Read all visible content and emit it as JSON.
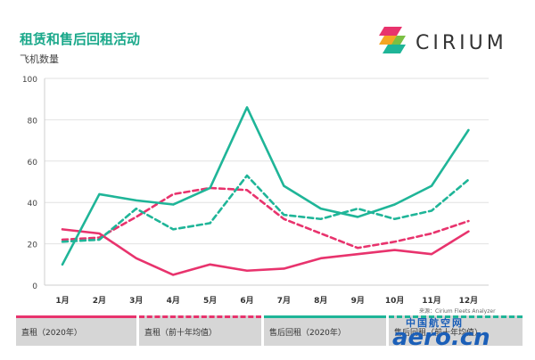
{
  "header": {
    "title": "租赁和售后回租活动",
    "ylabel": "飞机数量"
  },
  "logo": {
    "text": "CIRIUM"
  },
  "source": "来源：Cirium Fleets Analyzer",
  "legend": {
    "items": [
      {
        "label": "直租（2020年）",
        "color": "#e8336d",
        "style": "solid"
      },
      {
        "label": "直租（前十年均值）",
        "color": "#e8336d",
        "style": "dashed"
      },
      {
        "label": "售后回租（2020年）",
        "color": "#1fb598",
        "style": "solid"
      },
      {
        "label": "售后回租（前十年均值）",
        "color": "#1fb598",
        "style": "dashed"
      }
    ]
  },
  "watermark": {
    "cn": "中国航空网",
    "en": "aero.cn"
  },
  "chart_data": {
    "type": "line",
    "title": "租赁和售后回租活动",
    "ylabel": "飞机数量",
    "xlabel": "",
    "categories": [
      "1月",
      "2月",
      "3月",
      "4月",
      "5月",
      "6月",
      "7月",
      "8月",
      "9月",
      "10月",
      "11月",
      "12月"
    ],
    "ylim": [
      0,
      100
    ],
    "yticks": [
      0,
      20,
      40,
      60,
      80,
      100
    ],
    "grid": true,
    "series": [
      {
        "name": "直租（2020年）",
        "color": "#e8336d",
        "style": "solid",
        "values": [
          27,
          25,
          13,
          5,
          10,
          7,
          8,
          13,
          15,
          17,
          15,
          26
        ]
      },
      {
        "name": "直租（前十年均值）",
        "color": "#e8336d",
        "style": "dashed",
        "values": [
          22,
          23,
          33,
          44,
          47,
          46,
          32,
          25,
          18,
          21,
          25,
          31
        ]
      },
      {
        "name": "售后回租（2020年）",
        "color": "#1fb598",
        "style": "solid",
        "values": [
          10,
          44,
          41,
          39,
          47,
          86,
          48,
          37,
          33,
          39,
          48,
          75
        ]
      },
      {
        "name": "售后回租（前十年均值）",
        "color": "#1fb598",
        "style": "dashed",
        "values": [
          21,
          22,
          37,
          27,
          30,
          53,
          34,
          32,
          37,
          32,
          36,
          51
        ]
      }
    ]
  }
}
